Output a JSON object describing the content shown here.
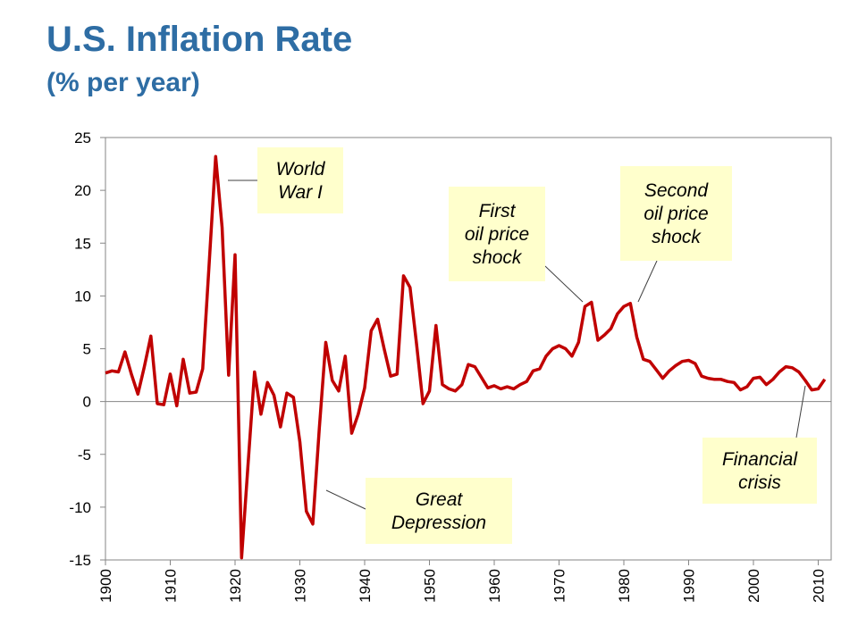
{
  "header": {
    "title": "U.S. Inflation Rate",
    "subtitle": "(% per year)"
  },
  "colors": {
    "title": "#2e6da4",
    "line": "#c00000",
    "annotation_bg": "#ffffcc"
  },
  "chart_data": {
    "type": "line",
    "title": "U.S. Inflation Rate",
    "subtitle": "(% per year)",
    "xlabel": "",
    "ylabel": "",
    "xlim": [
      1900,
      2012
    ],
    "ylim": [
      -15,
      25
    ],
    "x_ticks": [
      1900,
      1910,
      1920,
      1930,
      1940,
      1950,
      1960,
      1970,
      1980,
      1990,
      2000,
      2010
    ],
    "y_ticks": [
      -15,
      -10,
      -5,
      0,
      5,
      10,
      15,
      20,
      25
    ],
    "grid": false,
    "zero_line": true,
    "legend": "none",
    "series": [
      {
        "x": [
          1900,
          1901,
          1902,
          1903,
          1904,
          1905,
          1906,
          1907,
          1908,
          1909,
          1910,
          1911,
          1912,
          1913,
          1914,
          1915,
          1916,
          1917,
          1918,
          1919,
          1920,
          1921,
          1922,
          1923,
          1924,
          1925,
          1926,
          1927,
          1928,
          1929,
          1930,
          1931,
          1932,
          1933,
          1934,
          1935,
          1936,
          1937,
          1938,
          1939,
          1940,
          1941,
          1942,
          1943,
          1944,
          1945,
          1946,
          1947,
          1948,
          1949,
          1950,
          1951,
          1952,
          1953,
          1954,
          1955,
          1956,
          1957,
          1958,
          1959,
          1960,
          1961,
          1962,
          1963,
          1964,
          1965,
          1966,
          1967,
          1968,
          1969,
          1970,
          1971,
          1972,
          1973,
          1974,
          1975,
          1976,
          1977,
          1978,
          1979,
          1980,
          1981,
          1982,
          1983,
          1984,
          1985,
          1986,
          1987,
          1988,
          1989,
          1990,
          1991,
          1992,
          1993,
          1994,
          1995,
          1996,
          1997,
          1998,
          1999,
          2000,
          2001,
          2002,
          2003,
          2004,
          2005,
          2006,
          2007,
          2008,
          2009,
          2010,
          2011
        ],
        "y": [
          2.7,
          2.9,
          2.8,
          4.7,
          2.6,
          0.7,
          3.3,
          6.2,
          -0.2,
          -0.3,
          2.6,
          -0.4,
          4.0,
          0.8,
          0.9,
          3.1,
          13.0,
          23.2,
          16.5,
          2.5,
          13.9,
          -14.8,
          -6.0,
          2.8,
          -1.2,
          1.8,
          0.6,
          -2.4,
          0.8,
          0.4,
          -3.8,
          -10.4,
          -11.6,
          -2.5,
          5.6,
          2.0,
          1.0,
          4.3,
          -3.0,
          -1.2,
          1.3,
          6.7,
          7.8,
          5.0,
          2.4,
          2.6,
          11.9,
          10.8,
          5.5,
          -0.2,
          1.0,
          7.2,
          1.6,
          1.2,
          1.0,
          1.6,
          3.5,
          3.3,
          2.3,
          1.3,
          1.5,
          1.2,
          1.4,
          1.2,
          1.6,
          1.9,
          2.9,
          3.1,
          4.3,
          5.0,
          5.3,
          5.0,
          4.3,
          5.6,
          9.0,
          9.4,
          5.8,
          6.3,
          6.9,
          8.3,
          9.0,
          9.3,
          6.1,
          4.0,
          3.8,
          3.0,
          2.2,
          2.9,
          3.4,
          3.8,
          3.9,
          3.6,
          2.4,
          2.2,
          2.1,
          2.1,
          1.9,
          1.8,
          1.1,
          1.4,
          2.2,
          2.3,
          1.6,
          2.1,
          2.8,
          3.3,
          3.2,
          2.8,
          2.0,
          1.1,
          1.2,
          2.1
        ]
      }
    ],
    "annotations": [
      {
        "lines": [
          "World",
          "War I"
        ]
      },
      {
        "lines": [
          "Great",
          "Depression"
        ]
      },
      {
        "lines": [
          "First",
          "oil price",
          "shock"
        ]
      },
      {
        "lines": [
          "Second",
          "oil price",
          "shock"
        ]
      },
      {
        "lines": [
          "Financial",
          "crisis"
        ]
      }
    ]
  }
}
